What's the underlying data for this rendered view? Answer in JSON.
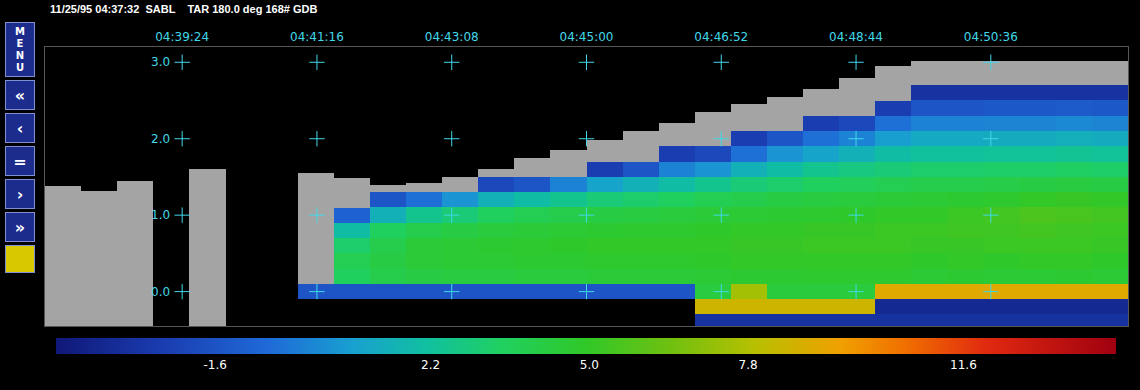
{
  "chart_data": {
    "type": "heatmap",
    "header": "11/25/95 04:37:32  SABL    TAR 180.0 deg 168# GDB",
    "menu": [
      "MENU",
      "«",
      "‹",
      "=",
      "›",
      "»"
    ],
    "x": [
      16665,
      16695,
      16725,
      16755,
      16785,
      16815,
      16845,
      16875,
      16905,
      16935,
      16965,
      16995,
      17025,
      17055,
      17085,
      17115,
      17145,
      17175,
      17205,
      17235,
      17265,
      17295,
      17325,
      17355,
      17385,
      17415,
      17445,
      17475,
      17505,
      17535
    ],
    "y": [
      -0.4,
      -0.2,
      0.0,
      0.2,
      0.4,
      0.6,
      0.8,
      1.0,
      1.2,
      1.4,
      1.6,
      1.8,
      2.0,
      2.2,
      2.4,
      2.6,
      2.8,
      3.0
    ],
    "z": [
      [
        null,
        null,
        null,
        null,
        null,
        null,
        null,
        null,
        null,
        null,
        null,
        null,
        null,
        null,
        null,
        null,
        null,
        null
      ],
      [
        null,
        null,
        null,
        null,
        null,
        null,
        null,
        null,
        null,
        null,
        null,
        null,
        null,
        null,
        null,
        null,
        null,
        null
      ],
      [
        null,
        null,
        null,
        null,
        null,
        null,
        null,
        null,
        null,
        null,
        null,
        null,
        null,
        null,
        null,
        null,
        null,
        null
      ],
      [
        null,
        null,
        null,
        null,
        null,
        null,
        null,
        null,
        null,
        null,
        null,
        null,
        null,
        null,
        null,
        null,
        null,
        null
      ],
      [
        null,
        null,
        null,
        null,
        null,
        null,
        null,
        null,
        null,
        null,
        null,
        null,
        null,
        null,
        null,
        null,
        null,
        null
      ],
      [
        null,
        null,
        null,
        null,
        null,
        null,
        null,
        null,
        null,
        null,
        null,
        null,
        null,
        null,
        null,
        null,
        null,
        null
      ],
      [
        null,
        null,
        null,
        null,
        null,
        null,
        null,
        null,
        null,
        null,
        null,
        null,
        null,
        null,
        null,
        null,
        null,
        null
      ],
      [
        null,
        null,
        -1.5,
        null,
        null,
        null,
        null,
        null,
        null,
        null,
        null,
        null,
        null,
        null,
        null,
        null,
        null,
        null
      ],
      [
        null,
        null,
        -1.5,
        3.5,
        3.8,
        3.2,
        2.0,
        -1.0,
        null,
        null,
        null,
        null,
        null,
        null,
        null,
        null,
        null,
        null
      ],
      [
        null,
        null,
        -1.5,
        4.0,
        4.2,
        4.0,
        3.5,
        1.5,
        -1.5,
        null,
        null,
        null,
        null,
        null,
        null,
        null,
        null,
        null
      ],
      [
        null,
        null,
        -1.5,
        4.2,
        4.5,
        4.5,
        4.0,
        2.5,
        -0.5,
        null,
        null,
        null,
        null,
        null,
        null,
        null,
        null,
        null
      ],
      [
        null,
        null,
        -1.5,
        4.3,
        4.6,
        4.6,
        4.2,
        3.0,
        0.5,
        null,
        null,
        null,
        null,
        null,
        null,
        null,
        null,
        null
      ],
      [
        null,
        null,
        -1.5,
        4.3,
        4.6,
        4.7,
        4.4,
        3.5,
        1.5,
        -2.0,
        null,
        null,
        null,
        null,
        null,
        null,
        null,
        null
      ],
      [
        null,
        null,
        -1.5,
        4.4,
        4.7,
        4.8,
        4.5,
        3.8,
        2.0,
        -1.5,
        null,
        null,
        null,
        null,
        null,
        null,
        null,
        null
      ],
      [
        null,
        null,
        -1.5,
        4.4,
        4.7,
        4.9,
        4.6,
        4.0,
        2.5,
        0.0,
        null,
        null,
        null,
        null,
        null,
        null,
        null,
        null
      ],
      [
        null,
        null,
        -1.5,
        4.5,
        4.8,
        5.0,
        4.7,
        4.2,
        3.0,
        1.0,
        -2.5,
        null,
        null,
        null,
        null,
        null,
        null,
        null
      ],
      [
        null,
        null,
        -1.5,
        4.5,
        4.8,
        5.0,
        4.8,
        4.3,
        3.2,
        1.5,
        -1.5,
        null,
        null,
        null,
        null,
        null,
        null,
        null
      ],
      [
        null,
        null,
        -1.5,
        4.5,
        4.8,
        5.0,
        4.8,
        4.4,
        3.5,
        2.0,
        0.0,
        -2.5,
        null,
        null,
        null,
        null,
        null,
        null
      ],
      [
        -3.0,
        8.5,
        4.3,
        4.6,
        4.9,
        5.0,
        4.9,
        4.5,
        3.8,
        2.5,
        0.5,
        -2.0,
        null,
        null,
        null,
        null,
        null,
        null
      ],
      [
        -3.0,
        8.5,
        7.5,
        4.7,
        5.0,
        5.1,
        5.0,
        4.6,
        4.0,
        3.0,
        1.5,
        -0.5,
        -2.5,
        null,
        null,
        null,
        null,
        null
      ],
      [
        -3.0,
        8.5,
        4.4,
        4.7,
        5.0,
        5.1,
        5.0,
        4.7,
        4.2,
        3.2,
        2.0,
        0.5,
        -1.5,
        null,
        null,
        null,
        null,
        null
      ],
      [
        -3.0,
        8.5,
        4.4,
        4.8,
        5.0,
        5.2,
        5.1,
        4.8,
        4.3,
        3.5,
        2.5,
        1.0,
        -0.5,
        -2.5,
        null,
        null,
        null,
        null
      ],
      [
        -3.0,
        8.5,
        4.4,
        4.8,
        5.0,
        5.2,
        5.1,
        4.9,
        4.4,
        3.6,
        2.8,
        1.5,
        0.0,
        -2.0,
        null,
        null,
        null,
        null
      ],
      [
        -3.0,
        -3.5,
        9.0,
        4.8,
        5.0,
        5.2,
        5.2,
        5.0,
        4.5,
        3.8,
        3.0,
        2.0,
        0.8,
        -0.5,
        -2.5,
        null,
        null,
        null
      ],
      [
        -3.0,
        -3.5,
        9.0,
        4.6,
        4.9,
        5.1,
        5.2,
        5.0,
        4.6,
        4.0,
        3.2,
        2.2,
        1.2,
        0.0,
        -1.5,
        -3.0,
        null,
        null
      ],
      [
        -3.0,
        -3.5,
        9.0,
        4.7,
        5.0,
        5.1,
        5.3,
        5.2,
        4.7,
        4.0,
        3.2,
        2.2,
        1.2,
        0.0,
        -1.5,
        -3.0,
        null,
        null
      ],
      [
        -3.0,
        -3.5,
        9.0,
        4.6,
        4.9,
        5.2,
        5.3,
        5.4,
        4.8,
        4.1,
        3.3,
        2.3,
        1.3,
        0.1,
        -1.4,
        -3.0,
        null,
        null
      ],
      [
        -3.0,
        -3.5,
        9.0,
        4.6,
        5.0,
        5.2,
        5.4,
        5.6,
        5.0,
        4.2,
        3.3,
        2.3,
        1.3,
        0.1,
        -1.4,
        -3.0,
        null,
        null
      ],
      [
        -3.0,
        -3.5,
        9.0,
        4.7,
        5.0,
        5.2,
        5.3,
        5.5,
        5.1,
        4.3,
        3.4,
        2.4,
        1.4,
        0.2,
        -1.3,
        -3.0,
        null,
        null
      ],
      [
        -3.0,
        -3.5,
        9.0,
        4.6,
        4.9,
        5.1,
        5.2,
        5.4,
        5.0,
        4.2,
        3.3,
        2.3,
        1.3,
        0.1,
        -1.4,
        -3.0,
        null,
        null
      ]
    ],
    "no_signal": {
      "bottom": [
        -0.45,
        -0.45,
        -0.45,
        null,
        -0.45,
        null,
        null,
        0.1,
        1.1,
        1.3,
        1.3,
        1.3,
        1.5,
        1.5,
        1.5,
        1.7,
        1.7,
        1.9,
        1.9,
        2.1,
        2.1,
        2.3,
        2.3,
        2.5,
        2.7,
        2.7,
        2.7,
        2.7,
        2.7,
        2.7
      ],
      "top": [
        1.38,
        1.32,
        1.45,
        null,
        1.6,
        null,
        null,
        1.55,
        1.49,
        1.4,
        1.42,
        1.5,
        1.6,
        1.75,
        1.85,
        1.98,
        2.1,
        2.2,
        2.35,
        2.45,
        2.55,
        2.65,
        2.8,
        2.95,
        3.02,
        3.02,
        3.02,
        3.02,
        3.02,
        3.02
      ]
    },
    "colorbar": {
      "range": [
        -4.4,
        14.3
      ],
      "ticks": [
        -1.6,
        2.2,
        {
          "value": 5,
          "label": "5.0"
        },
        7.8,
        11.6
      ]
    },
    "xlim": [
      16650,
      17550
    ],
    "xticks": [
      {
        "value": 16764,
        "label": "04:39:24"
      },
      {
        "value": 16876,
        "label": "04:41:16"
      },
      {
        "value": 16988,
        "label": "04:43:08"
      },
      {
        "value": 17100,
        "label": "04:45:00"
      },
      {
        "value": 17212,
        "label": "04:46:52"
      },
      {
        "value": 17324,
        "label": "04:48:44"
      },
      {
        "value": 17436,
        "label": "04:50:36"
      }
    ],
    "ylim": [
      -0.45,
      3.2
    ],
    "yticks": [
      {
        "value": 0,
        "label": "0.0"
      },
      {
        "value": 1,
        "label": "1.0"
      },
      {
        "value": 2,
        "label": "2.0"
      },
      {
        "value": 3,
        "label": "3.0"
      }
    ],
    "grid": true
  }
}
